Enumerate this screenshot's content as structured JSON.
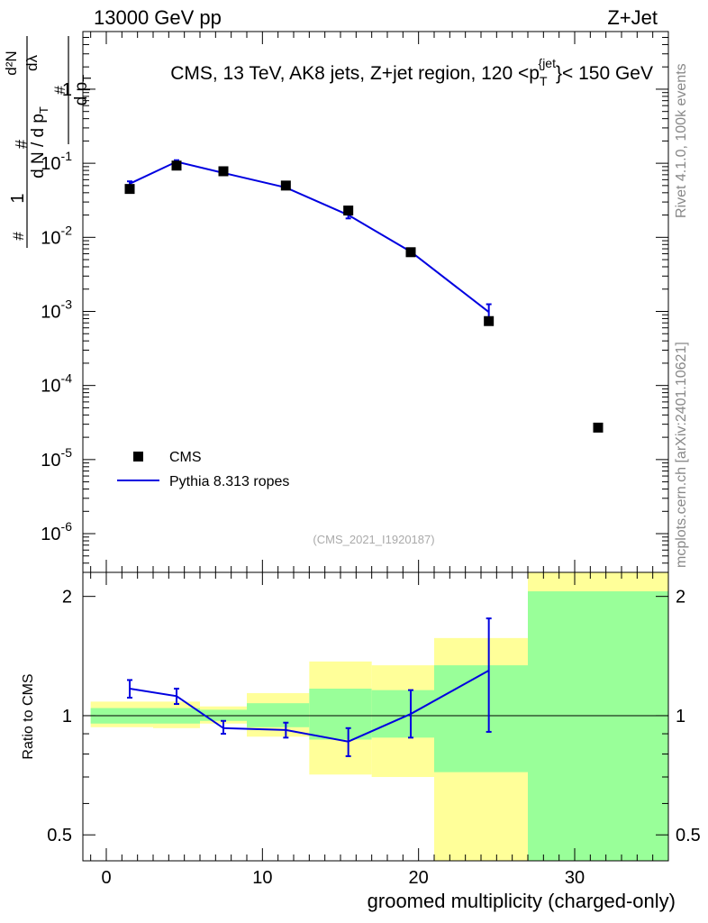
{
  "header": {
    "left": "13000 GeV pp",
    "right": "Z+Jet"
  },
  "side_labels": {
    "rivet": "Rivet 4.1.0,  100k events",
    "mcplots": "mcplots.cern.ch [arXiv:2401.10621]"
  },
  "colors": {
    "mc_line": "#0000e0",
    "band_stat": "#99ff99",
    "band_total": "#ffff99",
    "data_marker": "#000000"
  },
  "chart_data": [
    {
      "type": "scatter",
      "role": "main",
      "title": "CMS, 13 TeV, AK8 jets, Z+jet region, 120 <p_T^{jet}< 150 GeV",
      "ylabel": "1/(dN/dp_T) dN/(dp_T dλ)",
      "yscale": "log",
      "ylim": [
        3e-07,
        6
      ],
      "xlim": [
        -1.5,
        36
      ],
      "y_ticks": [
        {
          "value": 1,
          "label": "1"
        },
        {
          "value": 0.1,
          "label": "10^-1"
        },
        {
          "value": 0.01,
          "label": "10^-2"
        },
        {
          "value": 0.001,
          "label": "10^-3"
        },
        {
          "value": 0.0001,
          "label": "10^-4"
        },
        {
          "value": 1e-05,
          "label": "10^-5"
        },
        {
          "value": 1e-06,
          "label": "10^-6"
        }
      ],
      "watermark": "(CMS_2021_I1920187)",
      "legend": {
        "placement": "bottom-left",
        "entries": [
          {
            "name": "CMS",
            "style": "marker"
          },
          {
            "name": "Pythia 8.313 ropes",
            "style": "line"
          }
        ]
      },
      "series": [
        {
          "name": "CMS",
          "x": [
            1.5,
            4.5,
            7.5,
            11.5,
            15.5,
            19.5,
            24.5,
            31.5
          ],
          "values": [
            0.045,
            0.093,
            0.078,
            0.05,
            0.023,
            0.0063,
            0.00074,
            2.7e-05
          ]
        },
        {
          "name": "Pythia 8.313 ropes",
          "x": [
            1.5,
            4.5,
            7.5,
            11.5,
            15.5,
            19.5,
            24.5
          ],
          "values": [
            0.053,
            0.105,
            0.074,
            0.047,
            0.02,
            0.0064,
            0.00098
          ],
          "err_lo": [
            0.049,
            0.1,
            0.071,
            0.045,
            0.018,
            0.0057,
            0.00069
          ],
          "err_hi": [
            0.057,
            0.11,
            0.077,
            0.049,
            0.022,
            0.0071,
            0.00125
          ]
        }
      ]
    },
    {
      "type": "line",
      "role": "ratio",
      "ylabel": "Ratio to CMS",
      "xlabel": "groomed multiplicity (charged-only)",
      "yscale": "log",
      "ylim": [
        0.43,
        2.3
      ],
      "xlim": [
        -1.5,
        36
      ],
      "reference_line": 1,
      "x_ticks": [
        0,
        10,
        20,
        30
      ],
      "y_ticks": [
        {
          "value": 0.5,
          "label": "0.5"
        },
        {
          "value": 1,
          "label": "1"
        },
        {
          "value": 2,
          "label": "2"
        }
      ],
      "bins": [
        {
          "lo": -1,
          "hi": 3,
          "total": [
            0.935,
            1.085
          ],
          "stat": [
            0.955,
            1.045
          ]
        },
        {
          "lo": 3,
          "hi": 6,
          "total": [
            0.93,
            1.085
          ],
          "stat": [
            0.955,
            1.045
          ]
        },
        {
          "lo": 6,
          "hi": 9,
          "total": [
            0.955,
            1.055
          ],
          "stat": [
            0.97,
            1.035
          ]
        },
        {
          "lo": 9,
          "hi": 13,
          "total": [
            0.885,
            1.14
          ],
          "stat": [
            0.935,
            1.075
          ]
        },
        {
          "lo": 13,
          "hi": 17,
          "total": [
            0.71,
            1.37
          ],
          "stat": [
            0.87,
            1.17
          ]
        },
        {
          "lo": 17,
          "hi": 21,
          "total": [
            0.7,
            1.34
          ],
          "stat": [
            0.88,
            1.16
          ]
        },
        {
          "lo": 21,
          "hi": 27,
          "total": [
            0.43,
            1.57
          ],
          "stat": [
            0.72,
            1.34
          ]
        },
        {
          "lo": 27,
          "hi": 36,
          "total": [
            0.43,
            2.3
          ],
          "stat": [
            0.43,
            2.06
          ]
        }
      ],
      "series": [
        {
          "name": "Pythia 8.313 ropes / CMS",
          "x": [
            1.5,
            4.5,
            7.5,
            11.5,
            15.5,
            19.5,
            24.5
          ],
          "values": [
            1.17,
            1.12,
            0.93,
            0.92,
            0.86,
            1.01,
            1.3
          ],
          "err_lo": [
            1.11,
            1.07,
            0.9,
            0.88,
            0.79,
            0.88,
            0.91
          ],
          "err_hi": [
            1.23,
            1.17,
            0.97,
            0.96,
            0.93,
            1.16,
            1.76
          ]
        }
      ]
    }
  ]
}
